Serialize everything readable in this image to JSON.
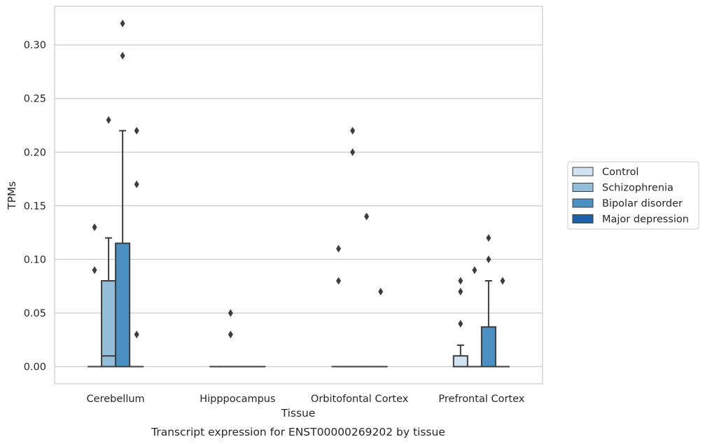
{
  "chart_data": {
    "type": "box",
    "xlabel": "Tissue",
    "ylabel": "TPMs",
    "caption": "Transcript expression for ENST00000269202 by tissue",
    "categories": [
      "Cerebellum",
      "Hipppocampus",
      "Orbitofontal Cortex",
      "Prefrontal Cortex"
    ],
    "ylim": [
      -0.016,
      0.336
    ],
    "yticks": [
      "0.00",
      "0.05",
      "0.10",
      "0.15",
      "0.20",
      "0.25",
      "0.30"
    ],
    "grid": true,
    "legend_position": "right",
    "series": [
      {
        "name": "Control",
        "color": "#d1e2f0",
        "boxes": [
          {
            "q1": 0,
            "median": 0,
            "q3": 0,
            "whisker_low": 0,
            "whisker_high": 0,
            "outliers": [
              0.09,
              0.13
            ]
          },
          {
            "q1": 0,
            "median": 0,
            "q3": 0,
            "whisker_low": 0,
            "whisker_high": 0,
            "outliers": []
          },
          {
            "q1": 0,
            "median": 0,
            "q3": 0,
            "whisker_low": 0,
            "whisker_high": 0,
            "outliers": [
              0.08,
              0.11
            ]
          },
          {
            "q1": 0,
            "median": 0,
            "q3": 0.01,
            "whisker_low": 0,
            "whisker_high": 0.02,
            "outliers": [
              0.04,
              0.07,
              0.08
            ]
          }
        ]
      },
      {
        "name": "Schizophrenia",
        "color": "#94bdd9",
        "boxes": [
          {
            "q1": 0,
            "median": 0.01,
            "q3": 0.08,
            "whisker_low": 0,
            "whisker_high": 0.12,
            "outliers": [
              0.23
            ]
          },
          {
            "q1": 0,
            "median": 0,
            "q3": 0,
            "whisker_low": 0,
            "whisker_high": 0,
            "outliers": [
              0.03,
              0.05
            ]
          },
          {
            "q1": 0,
            "median": 0,
            "q3": 0,
            "whisker_low": 0,
            "whisker_high": 0,
            "outliers": [
              0.2,
              0.22
            ]
          },
          {
            "q1": 0,
            "median": 0,
            "q3": 0,
            "whisker_low": 0,
            "whisker_high": 0,
            "outliers": [
              0.09
            ]
          }
        ]
      },
      {
        "name": "Bipolar disorder",
        "color": "#4a90c2",
        "boxes": [
          {
            "q1": 0,
            "median": 0,
            "q3": 0.115,
            "whisker_low": 0,
            "whisker_high": 0.22,
            "outliers": [
              0.29,
              0.32
            ]
          },
          {
            "q1": 0,
            "median": 0,
            "q3": 0,
            "whisker_low": 0,
            "whisker_high": 0,
            "outliers": []
          },
          {
            "q1": 0,
            "median": 0,
            "q3": 0,
            "whisker_low": 0,
            "whisker_high": 0,
            "outliers": [
              0.14
            ]
          },
          {
            "q1": 0,
            "median": 0,
            "q3": 0.037,
            "whisker_low": 0,
            "whisker_high": 0.08,
            "outliers": [
              0.1,
              0.12
            ]
          }
        ]
      },
      {
        "name": "Major depression",
        "color": "#1c62a5",
        "boxes": [
          {
            "q1": 0,
            "median": 0,
            "q3": 0,
            "whisker_low": 0,
            "whisker_high": 0,
            "outliers": [
              0.03,
              0.17,
              0.22
            ]
          },
          {
            "q1": 0,
            "median": 0,
            "q3": 0,
            "whisker_low": 0,
            "whisker_high": 0,
            "outliers": []
          },
          {
            "q1": 0,
            "median": 0,
            "q3": 0,
            "whisker_low": 0,
            "whisker_high": 0,
            "outliers": [
              0.07
            ]
          },
          {
            "q1": 0,
            "median": 0,
            "q3": 0,
            "whisker_low": 0,
            "whisker_high": 0,
            "outliers": [
              0.08
            ]
          }
        ]
      }
    ]
  }
}
